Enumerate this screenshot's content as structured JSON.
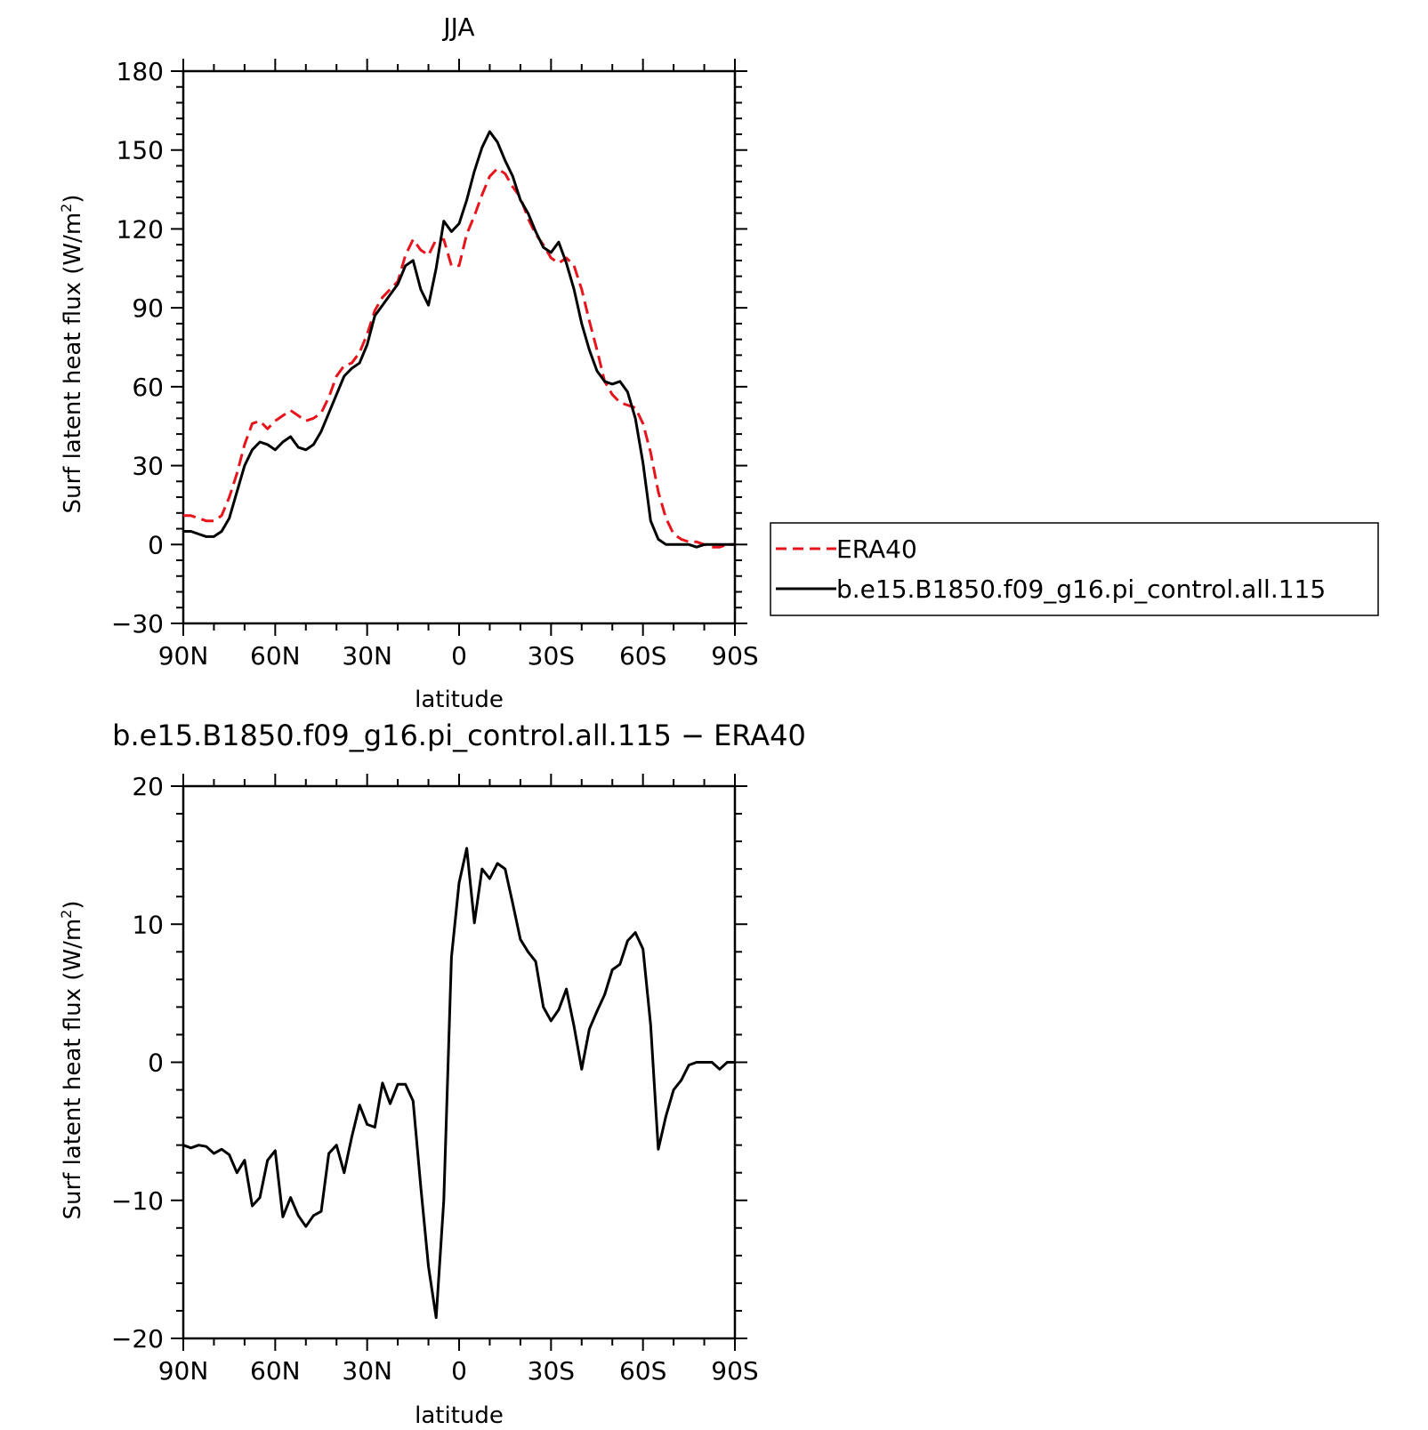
{
  "chart_data": [
    {
      "type": "line",
      "title": "JJA",
      "xlabel": "latitude",
      "ylabel": "Surf latent heat flux (W/m",
      "ylabel_sup": "2",
      "ylabel_close": ")",
      "xlim": [
        90,
        -90
      ],
      "ylim": [
        -30,
        180
      ],
      "x_ticks": [
        90,
        60,
        30,
        0,
        -30,
        -60,
        -90
      ],
      "x_tick_labels": [
        "90N",
        "60N",
        "30N",
        "0",
        "30S",
        "60S",
        "90S"
      ],
      "y_ticks": [
        -30,
        0,
        30,
        60,
        90,
        120,
        150,
        180
      ],
      "y_tick_labels": [
        "−30",
        "0",
        "30",
        "60",
        "90",
        "120",
        "150",
        "180"
      ],
      "legend_position": "right",
      "series": [
        {
          "name": "ERA40",
          "color": "#e8141c",
          "dash": "dashed",
          "x": [
            90,
            87.5,
            85,
            82.5,
            80,
            77.5,
            75,
            72.5,
            70,
            67.5,
            65,
            62.5,
            60,
            57.5,
            55,
            52.5,
            50,
            47.5,
            45,
            42.5,
            40,
            37.5,
            35,
            32.5,
            30,
            27.5,
            25,
            22.5,
            20,
            17.5,
            15,
            12.5,
            10,
            7.5,
            5,
            2.5,
            0,
            -2.5,
            -5,
            -7.5,
            -10,
            -12.5,
            -15,
            -17.5,
            -20,
            -22.5,
            -25,
            -27.5,
            -30,
            -32.5,
            -35,
            -37.5,
            -40,
            -42.5,
            -45,
            -47.5,
            -50,
            -52.5,
            -55,
            -57.5,
            -60,
            -62.5,
            -65,
            -67.5,
            -70,
            -72.5,
            -75,
            -77.5,
            -80,
            -82.5,
            -85,
            -87.5,
            -90
          ],
          "y": [
            11,
            11,
            10,
            9,
            9,
            11,
            18,
            27,
            38,
            46,
            47,
            44,
            47,
            49,
            51,
            49,
            47,
            48,
            50,
            56,
            64,
            68,
            69,
            73,
            80,
            89,
            94,
            97,
            100,
            110,
            116,
            112,
            110,
            116,
            116,
            106,
            106,
            118,
            125,
            133,
            140,
            143,
            141,
            136,
            132,
            124,
            118,
            114,
            109,
            107,
            109,
            106,
            97,
            85,
            74,
            62,
            57,
            54,
            53,
            52,
            46,
            35,
            20,
            10,
            4,
            2,
            1,
            1,
            0,
            -1,
            -1,
            0,
            0
          ]
        },
        {
          "name": "b.e15.B1850.f09_g16.pi_control.all.115",
          "color": "#000000",
          "dash": "solid",
          "x": [
            90,
            87.5,
            85,
            82.5,
            80,
            77.5,
            75,
            72.5,
            70,
            67.5,
            65,
            62.5,
            60,
            57.5,
            55,
            52.5,
            50,
            47.5,
            45,
            42.5,
            40,
            37.5,
            35,
            32.5,
            30,
            27.5,
            25,
            22.5,
            20,
            17.5,
            15,
            12.5,
            10,
            7.5,
            5,
            2.5,
            0,
            -2.5,
            -5,
            -7.5,
            -10,
            -12.5,
            -15,
            -17.5,
            -20,
            -22.5,
            -25,
            -27.5,
            -30,
            -32.5,
            -35,
            -37.5,
            -40,
            -42.5,
            -45,
            -47.5,
            -50,
            -52.5,
            -55,
            -57.5,
            -60,
            -62.5,
            -65,
            -67.5,
            -70,
            -72.5,
            -75,
            -77.5,
            -80,
            -82.5,
            -85,
            -87.5,
            -90
          ],
          "y": [
            5,
            5,
            4,
            3,
            3,
            5,
            10,
            20,
            30,
            36,
            39,
            38,
            36,
            39,
            41,
            37,
            36,
            38,
            43,
            50,
            57,
            64,
            67,
            69,
            76,
            87,
            91,
            95,
            99,
            106,
            108,
            97,
            91,
            105,
            123,
            119,
            122,
            131,
            142,
            151,
            157,
            153,
            146,
            140,
            131,
            126,
            119,
            113,
            111,
            115,
            107,
            97,
            84,
            74,
            66,
            62,
            61,
            62,
            58,
            48,
            31,
            9,
            2,
            0,
            0,
            0,
            0,
            -1,
            0,
            0,
            0,
            0,
            0
          ]
        }
      ]
    },
    {
      "type": "line",
      "title": "b.e15.B1850.f09_g16.pi_control.all.115 − ERA40",
      "xlabel": "latitude",
      "ylabel": "Surf latent heat flux (W/m",
      "ylabel_sup": "2",
      "ylabel_close": ")",
      "xlim": [
        90,
        -90
      ],
      "ylim": [
        -20,
        20
      ],
      "x_ticks": [
        90,
        60,
        30,
        0,
        -30,
        -60,
        -90
      ],
      "x_tick_labels": [
        "90N",
        "60N",
        "30N",
        "0",
        "30S",
        "60S",
        "90S"
      ],
      "y_ticks": [
        -20,
        -10,
        0,
        10,
        20
      ],
      "y_tick_labels": [
        "−20",
        "−10",
        "0",
        "10",
        "20"
      ],
      "series": [
        {
          "color": "#000000",
          "dash": "solid",
          "x": [
            90,
            87.5,
            85,
            82.5,
            80,
            77.5,
            75,
            72.5,
            70,
            67.5,
            65,
            62.5,
            60,
            57.5,
            55,
            52.5,
            50,
            47.5,
            45,
            42.5,
            40,
            37.5,
            35,
            32.5,
            30,
            27.5,
            25,
            22.5,
            20,
            17.5,
            15,
            12.5,
            10,
            7.5,
            5,
            2.5,
            0,
            -2.5,
            -5,
            -7.5,
            -10,
            -12.5,
            -15,
            -17.5,
            -20,
            -22.5,
            -25,
            -27.5,
            -30,
            -32.5,
            -35,
            -37.5,
            -40,
            -42.5,
            -45,
            -47.5,
            -50,
            -52.5,
            -55,
            -57.5,
            -60,
            -62.5,
            -65,
            -67.5,
            -70,
            -72.5,
            -75,
            -77.5,
            -80,
            -82.5,
            -85,
            -87.5,
            -90
          ],
          "y": [
            -6,
            -6.2,
            -6,
            -6.1,
            -6.6,
            -6.3,
            -6.7,
            -8,
            -7.1,
            -10.4,
            -9.8,
            -7.1,
            -6.4,
            -11.2,
            -9.8,
            -11.1,
            -11.9,
            -11.1,
            -10.8,
            -6.6,
            -6,
            -8,
            -5.4,
            -3.1,
            -4.5,
            -4.7,
            -1.5,
            -3,
            -1.6,
            -1.6,
            -2.8,
            -9,
            -14.8,
            -18.5,
            -10,
            7.6,
            13,
            15.5,
            10.1,
            14,
            13.3,
            14.4,
            14,
            11.5,
            8.9,
            8,
            7.3,
            4,
            3,
            3.8,
            5.3,
            2.6,
            -0.5,
            2.4,
            3.7,
            4.9,
            6.7,
            7.1,
            8.8,
            9.4,
            8.2,
            2.7,
            -6.3,
            -3.9,
            -2,
            -1.3,
            -0.2,
            0,
            0,
            0,
            -0.5,
            0,
            0
          ]
        }
      ]
    }
  ]
}
